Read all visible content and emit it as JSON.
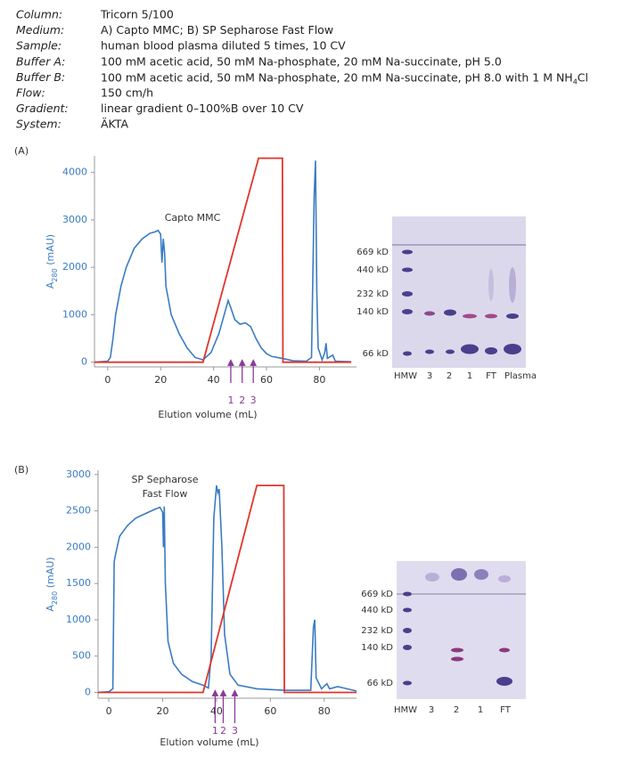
{
  "header": {
    "rows": [
      [
        "Column:",
        "Tricorn 5/100"
      ],
      [
        "Medium:",
        "A) Capto MMC; B) SP Sepharose Fast Flow"
      ],
      [
        "Sample:",
        "human blood plasma diluted 5 times, 10 CV"
      ],
      [
        "Buffer A:",
        "100 mM acetic acid, 50 mM Na-phosphate, 20 mM Na-succinate, pH 5.0"
      ],
      [
        "Buffer B:",
        [
          "100 mM acetic acid, 50 mM Na-phosphate, 20 mM Na-succinate, pH 8.0 with 1 M NH",
          "4",
          "Cl"
        ]
      ],
      [
        "Flow:",
        "150 cm/h"
      ],
      [
        "Gradient:",
        "linear gradient 0–100%B over 10 CV"
      ],
      [
        "System:",
        "ÄKTA"
      ]
    ]
  },
  "chart_data": [
    {
      "type": "line",
      "panel": "(A)",
      "ylabel": [
        "A",
        "280",
        " (mAU)"
      ],
      "xlabel": "Elution volume (mL)",
      "xlim": [
        -5,
        94
      ],
      "ylim": [
        -100,
        4350
      ],
      "xticks": [
        0,
        20,
        40,
        60,
        80
      ],
      "yticks": [
        0,
        1000,
        2000,
        3000,
        4000
      ],
      "annotations": [
        "Capto MMC"
      ],
      "series": [
        {
          "color": "#3a7cc3",
          "x": [
            -5,
            0,
            1,
            2,
            3,
            5,
            7,
            10,
            13,
            16,
            18,
            19,
            20,
            20.5,
            21,
            21.5,
            22,
            24,
            27,
            30,
            33,
            36,
            39,
            42,
            44,
            45.5,
            46.5,
            48,
            50,
            52,
            54,
            56,
            58,
            60,
            62,
            66,
            70,
            75,
            77,
            78,
            78.5,
            79,
            79.5,
            81,
            82,
            82.5,
            83,
            85,
            86,
            92
          ],
          "values": [
            0,
            20,
            100,
            500,
            1000,
            1600,
            2000,
            2400,
            2600,
            2720,
            2750,
            2780,
            2700,
            2100,
            2600,
            2300,
            1600,
            1000,
            600,
            300,
            100,
            50,
            200,
            600,
            1000,
            1300,
            1150,
            900,
            800,
            830,
            750,
            500,
            300,
            180,
            120,
            80,
            30,
            20,
            100,
            3500,
            4250,
            1500,
            300,
            50,
            200,
            400,
            80,
            150,
            20,
            10
          ]
        },
        {
          "color": "#e0352b",
          "x": [
            -5,
            36,
            57,
            66,
            66.2,
            92
          ],
          "values": [
            0,
            0,
            4300,
            4300,
            0,
            0
          ]
        }
      ],
      "fractions": [
        {
          "label": "1",
          "x": 46.5
        },
        {
          "label": "2",
          "x": 50.8
        },
        {
          "label": "3",
          "x": 55
        }
      ],
      "gel": {
        "markers": [
          "669 kD",
          "440 kD",
          "232 kD",
          "140 kD",
          "66 kD"
        ],
        "lanes": [
          "HMW",
          "3",
          "2",
          "1",
          "FT",
          "Plasma"
        ]
      }
    },
    {
      "type": "line",
      "panel": "(B)",
      "ylabel": [
        "A",
        "280",
        " (mAU)"
      ],
      "xlabel": "Elution volume (mL)",
      "xlim": [
        -4,
        92
      ],
      "ylim": [
        -80,
        3060
      ],
      "xticks": [
        0,
        20,
        40,
        60,
        80
      ],
      "yticks": [
        0,
        500,
        1000,
        1500,
        2000,
        2500,
        3000
      ],
      "annotations": [
        "SP Sepharose",
        "Fast Flow"
      ],
      "series": [
        {
          "color": "#3a7cc3",
          "x": [
            -4,
            0,
            1.5,
            2,
            2.5,
            4,
            7,
            10,
            14,
            17,
            19,
            20,
            20.3,
            20.6,
            21,
            22,
            24,
            27,
            31,
            35,
            37,
            38,
            39,
            40,
            40.5,
            41,
            42,
            43,
            45,
            48,
            55,
            65,
            75,
            76,
            76.5,
            77,
            79,
            81,
            82,
            85,
            92
          ],
          "values": [
            0,
            10,
            50,
            1800,
            1900,
            2150,
            2300,
            2400,
            2470,
            2520,
            2550,
            2480,
            2000,
            2560,
            1500,
            700,
            400,
            250,
            150,
            100,
            60,
            500,
            2400,
            2850,
            2750,
            2800,
            2000,
            800,
            250,
            100,
            50,
            30,
            30,
            900,
            1000,
            200,
            50,
            120,
            50,
            80,
            20
          ]
        },
        {
          "color": "#e0352b",
          "x": [
            -4,
            35,
            55,
            65,
            65.2,
            92
          ],
          "values": [
            0,
            0,
            2850,
            2850,
            0,
            0
          ]
        }
      ],
      "fractions": [
        {
          "label": "1",
          "x": 39.5
        },
        {
          "label": "2",
          "x": 42.5
        },
        {
          "label": "3",
          "x": 46.8
        }
      ],
      "gel": {
        "markers": [
          "669 kD",
          "440 kD",
          "232 kD",
          "140 kD",
          "66 kD"
        ],
        "lanes": [
          "HMW",
          "3",
          "2",
          "1",
          "FT"
        ]
      }
    }
  ]
}
